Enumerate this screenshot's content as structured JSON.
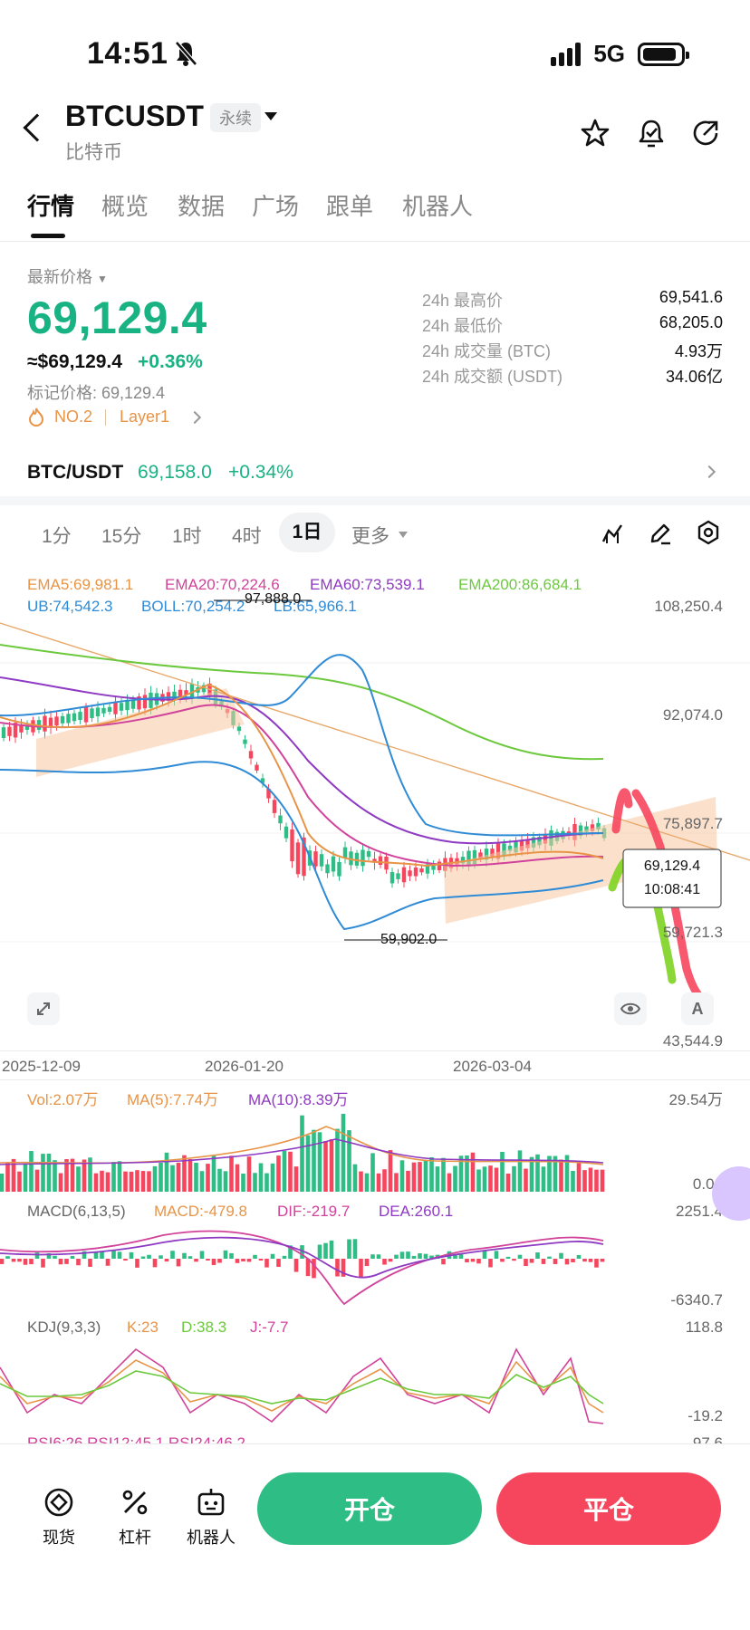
{
  "status_bar": {
    "time": "14:51",
    "network": "5G"
  },
  "header": {
    "symbol": "BTCUSDT",
    "contract_tag": "永续",
    "subtitle": "比特币"
  },
  "tabs": [
    "行情",
    "概览",
    "数据",
    "广场",
    "跟单",
    "机器人"
  ],
  "price": {
    "label": "最新价格",
    "last": "69,129.4",
    "usd": "≈$69,129.4",
    "change": "+0.36%",
    "mark_price": "标记价格: 69,129.4",
    "rank": "NO.2",
    "tag": "Layer1"
  },
  "stats": [
    {
      "label": "24h 最高价",
      "value": "69,541.6"
    },
    {
      "label": "24h 最低价",
      "value": "68,205.0"
    },
    {
      "label": "24h 成交量 (BTC)",
      "value": "4.93万"
    },
    {
      "label": "24h 成交额 (USDT)",
      "value": "34.06亿"
    }
  ],
  "spot": {
    "pair": "BTC/USDT",
    "price": "69,158.0",
    "change": "+0.34%"
  },
  "intervals": [
    "1分",
    "15分",
    "1时",
    "4时",
    "1日",
    "更多"
  ],
  "active_interval": "1日",
  "indicators": {
    "ema": [
      {
        "text": "EMA5:69,981.1",
        "color": "#e89447"
      },
      {
        "text": "EMA20:70,224.6",
        "color": "#d1429b"
      },
      {
        "text": "EMA60:73,539.1",
        "color": "#8e3ac2"
      },
      {
        "text": "EMA200:86,684.1",
        "color": "#6cc93d"
      }
    ],
    "boll": [
      {
        "text": "UB:74,542.3",
        "color": "#2f8bd6"
      },
      {
        "text": "BOLL:70,254.2",
        "color": "#2f8bd6"
      },
      {
        "text": "LB:65,966.1",
        "color": "#2f8bd6"
      }
    ],
    "vol": [
      {
        "text": "Vol:2.07万",
        "color": "#e89447"
      },
      {
        "text": "MA(5):7.74万",
        "color": "#e89447"
      },
      {
        "text": "MA(10):8.39万",
        "color": "#8e3ac2"
      }
    ],
    "macd": [
      {
        "text": "MACD(6,13,5)",
        "color": "#666666"
      },
      {
        "text": "MACD:-479.8",
        "color": "#e89447"
      },
      {
        "text": "DIF:-219.7",
        "color": "#d1429b"
      },
      {
        "text": "DEA:260.1",
        "color": "#8e3ac2"
      }
    ],
    "kdj": [
      {
        "text": "KDJ(9,3,3)",
        "color": "#666666"
      },
      {
        "text": "K:23",
        "color": "#e89447"
      },
      {
        "text": "D:38.3",
        "color": "#6cc93d"
      },
      {
        "text": "J:-7.7",
        "color": "#d1429b"
      }
    ],
    "rsi_partial": "RSI6:26   RSI12:45.1   RSI24:46.2"
  },
  "price_axis": [
    "108,250.4",
    "92,074.0",
    "75,897.7",
    "59,721.3",
    "43,544.9"
  ],
  "last_price_tag": {
    "price": "69,129.4",
    "countdown": "10:08:41"
  },
  "chart_annotations": {
    "high": "97,888.0",
    "low": "59,902.0"
  },
  "date_axis": [
    "2025-12-09",
    "2026-01-20",
    "2026-03-04"
  ],
  "vol_axis": [
    "29.54万",
    "0.00"
  ],
  "macd_axis": [
    "2251.4",
    "-6340.7"
  ],
  "kdj_axis": [
    "118.8",
    "-19.2"
  ],
  "rsi_axis_partial": "97.6",
  "bottom_nav": [
    "现货",
    "杠杆",
    "机器人"
  ],
  "actions": {
    "open": "开仓",
    "close": "平仓"
  },
  "colors": {
    "up": "#2ebd85",
    "down": "#f6465d",
    "accent": "#19b383"
  }
}
